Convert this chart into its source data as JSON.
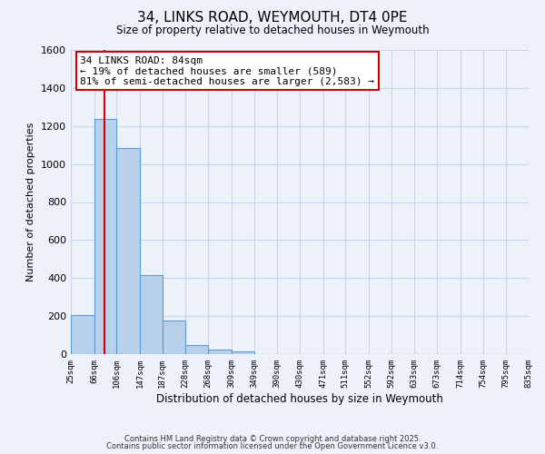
{
  "title": "34, LINKS ROAD, WEYMOUTH, DT4 0PE",
  "subtitle": "Size of property relative to detached houses in Weymouth",
  "xlabel": "Distribution of detached houses by size in Weymouth",
  "ylabel": "Number of detached properties",
  "bin_labels": [
    "25sqm",
    "66sqm",
    "106sqm",
    "147sqm",
    "187sqm",
    "228sqm",
    "268sqm",
    "309sqm",
    "349sqm",
    "390sqm",
    "430sqm",
    "471sqm",
    "511sqm",
    "552sqm",
    "592sqm",
    "633sqm",
    "673sqm",
    "714sqm",
    "754sqm",
    "795sqm",
    "835sqm"
  ],
  "bar_values": [
    205,
    1235,
    1085,
    415,
    175,
    50,
    25,
    15,
    0,
    0,
    0,
    0,
    0,
    0,
    0,
    0,
    0,
    0,
    0,
    0
  ],
  "bar_color": "#b8d0ea",
  "bar_edge_color": "#5b9bd5",
  "background_color": "#edf2fa",
  "grid_color": "#d0d8e8",
  "vline_color": "#cc0000",
  "annotation_title": "34 LINKS ROAD: 84sqm",
  "annotation_line1": "← 19% of detached houses are smaller (589)",
  "annotation_line2": "81% of semi-detached houses are larger (2,583) →",
  "annotation_box_color": "#ffffff",
  "annotation_box_edge": "#cc0000",
  "ylim": [
    0,
    1600
  ],
  "yticks": [
    0,
    200,
    400,
    600,
    800,
    1000,
    1200,
    1400,
    1600
  ],
  "bin_edges": [
    25,
    66,
    106,
    147,
    187,
    228,
    268,
    309,
    349,
    390,
    430,
    471,
    511,
    552,
    592,
    633,
    673,
    714,
    754,
    795,
    835
  ],
  "vline_x": 84,
  "footer_line1": "Contains HM Land Registry data © Crown copyright and database right 2025.",
  "footer_line2": "Contains public sector information licensed under the Open Government Licence v3.0."
}
